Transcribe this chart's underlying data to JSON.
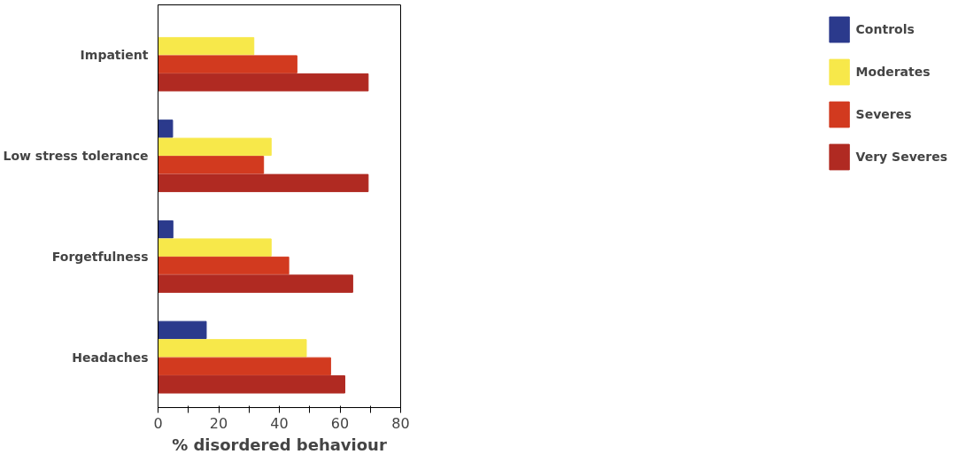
{
  "chart_data": {
    "type": "bar",
    "orientation": "horizontal",
    "xlabel": "% disordered behaviour",
    "categories": [
      "Impatient",
      "Low stress tolerance",
      "Forgetfulness",
      "Headaches"
    ],
    "series": [
      {
        "name": "Controls",
        "color": "#2b3a8c",
        "values": [
          0,
          4.8,
          4.9,
          15.9
        ]
      },
      {
        "name": "Moderates",
        "color": "#f7e84a",
        "values": [
          31.6,
          37.3,
          37.3,
          48.9
        ]
      },
      {
        "name": "Severes",
        "color": "#d23a1f",
        "values": [
          45.8,
          34.8,
          43.1,
          56.9
        ]
      },
      {
        "name": "Very Severes",
        "color": "#b02a22",
        "values": [
          69.3,
          69.3,
          64.2,
          61.6
        ]
      }
    ],
    "xlim": [
      0,
      80
    ],
    "xticks": [
      0,
      {
        "value": 10,
        "label": null
      },
      20,
      {
        "value": 30,
        "label": null
      },
      40,
      {
        "value": 50,
        "label": null
      },
      60,
      {
        "value": 70,
        "label": null
      },
      80
    ],
    "grid": false,
    "legend": "right"
  }
}
